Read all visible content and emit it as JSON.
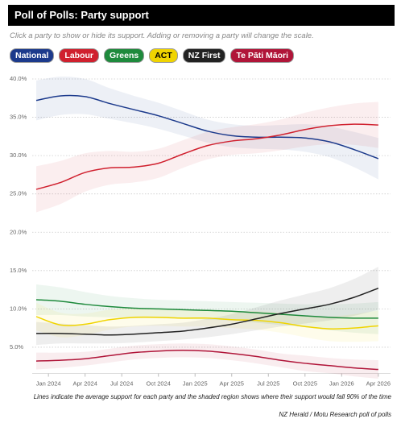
{
  "chart_data": {
    "type": "line",
    "title": "Poll of Polls: Party support",
    "subtitle": "Click a party to show or hide its support. Adding or removing a party will change the scale.",
    "note": "Lines indicate the average support for each party and the shaded region shows where their support would fall 90% of the time",
    "source": "NZ Herald / Motu Research poll of polls",
    "x": [
      "2023-12",
      "2024-02",
      "2024-04",
      "2024-06",
      "2024-08",
      "2024-10",
      "2024-12",
      "2025-02",
      "2025-04",
      "2025-06",
      "2025-08",
      "2025-10",
      "2025-12",
      "2026-02",
      "2026-04"
    ],
    "xlim": [
      "2023-12",
      "2026-05"
    ],
    "xticks": [
      {
        "value": "2024-01",
        "label": "Jan 2024"
      },
      {
        "value": "2024-04",
        "label": "Apr 2024"
      },
      {
        "value": "2024-07",
        "label": "Jul 2024"
      },
      {
        "value": "2024-10",
        "label": "Oct 2024"
      },
      {
        "value": "2025-01",
        "label": "Jan 2025"
      },
      {
        "value": "2025-04",
        "label": "Apr 2025"
      },
      {
        "value": "2025-07",
        "label": "Jul 2025"
      },
      {
        "value": "2025-10",
        "label": "Oct 2025"
      },
      {
        "value": "2026-01",
        "label": "Jan 2026"
      },
      {
        "value": "2026-04",
        "label": "Apr 2026"
      }
    ],
    "ylim": [
      2,
      41
    ],
    "yticks": [
      {
        "value": 5,
        "label": "5.0%"
      },
      {
        "value": 10,
        "label": "10.0%"
      },
      {
        "value": 15,
        "label": "15.0%"
      },
      {
        "value": 20,
        "label": "20.0%"
      },
      {
        "value": 25,
        "label": "25.0%"
      },
      {
        "value": 30,
        "label": "30.0%"
      },
      {
        "value": 35,
        "label": "35.0%"
      },
      {
        "value": 40,
        "label": "40.0%"
      }
    ],
    "grid": true,
    "series": [
      {
        "name": "National",
        "color": "#1c3a8c",
        "values": [
          37.2,
          37.8,
          37.7,
          36.8,
          36.0,
          35.2,
          34.2,
          33.2,
          32.6,
          32.4,
          32.4,
          32.3,
          31.8,
          30.8,
          29.6
        ],
        "margin": [
          2.6,
          2.5,
          2.3,
          2.0,
          1.8,
          1.7,
          1.6,
          1.5,
          1.5,
          1.5,
          1.6,
          1.8,
          2.0,
          2.3,
          2.7
        ]
      },
      {
        "name": "Labour",
        "color": "#d0202e",
        "values": [
          25.6,
          26.5,
          27.8,
          28.4,
          28.5,
          29.0,
          30.2,
          31.3,
          31.9,
          32.2,
          32.7,
          33.4,
          33.9,
          34.1,
          34.0
        ],
        "margin": [
          3.0,
          2.8,
          2.5,
          2.2,
          2.0,
          1.9,
          1.8,
          1.8,
          1.8,
          1.9,
          2.0,
          2.2,
          2.4,
          2.7,
          3.0
        ]
      },
      {
        "name": "Greens",
        "color": "#1e8a3c",
        "values": [
          11.2,
          11.0,
          10.6,
          10.3,
          10.1,
          10.0,
          9.9,
          9.8,
          9.7,
          9.5,
          9.3,
          9.1,
          8.9,
          8.8,
          8.8
        ],
        "margin": [
          2.0,
          1.8,
          1.6,
          1.4,
          1.3,
          1.2,
          1.2,
          1.2,
          1.2,
          1.3,
          1.4,
          1.5,
          1.7,
          1.9,
          2.1
        ]
      },
      {
        "name": "ACT",
        "color": "#f0d400",
        "values": [
          9.0,
          7.9,
          8.0,
          8.6,
          8.9,
          8.9,
          8.8,
          8.8,
          8.6,
          8.5,
          8.2,
          7.7,
          7.4,
          7.5,
          7.8
        ],
        "margin": [
          1.8,
          1.6,
          1.4,
          1.3,
          1.2,
          1.1,
          1.1,
          1.1,
          1.1,
          1.2,
          1.3,
          1.4,
          1.6,
          1.8,
          2.0
        ]
      },
      {
        "name": "NZ First",
        "color": "#222222",
        "values": [
          6.8,
          6.8,
          6.7,
          6.6,
          6.7,
          6.9,
          7.1,
          7.5,
          8.0,
          8.7,
          9.4,
          10.0,
          10.6,
          11.5,
          12.7
        ],
        "margin": [
          1.5,
          1.3,
          1.2,
          1.1,
          1.1,
          1.1,
          1.1,
          1.2,
          1.3,
          1.5,
          1.7,
          1.9,
          2.1,
          2.4,
          2.8
        ]
      },
      {
        "name": "Te Pāti Māori",
        "color": "#b01539",
        "values": [
          3.2,
          3.3,
          3.5,
          3.9,
          4.3,
          4.5,
          4.6,
          4.5,
          4.2,
          3.8,
          3.3,
          2.9,
          2.6,
          2.3,
          2.1
        ],
        "margin": [
          1.1,
          1.0,
          0.9,
          0.9,
          0.9,
          0.9,
          0.9,
          0.9,
          0.9,
          0.9,
          0.9,
          1.0,
          1.0,
          1.1,
          1.2
        ]
      }
    ]
  }
}
